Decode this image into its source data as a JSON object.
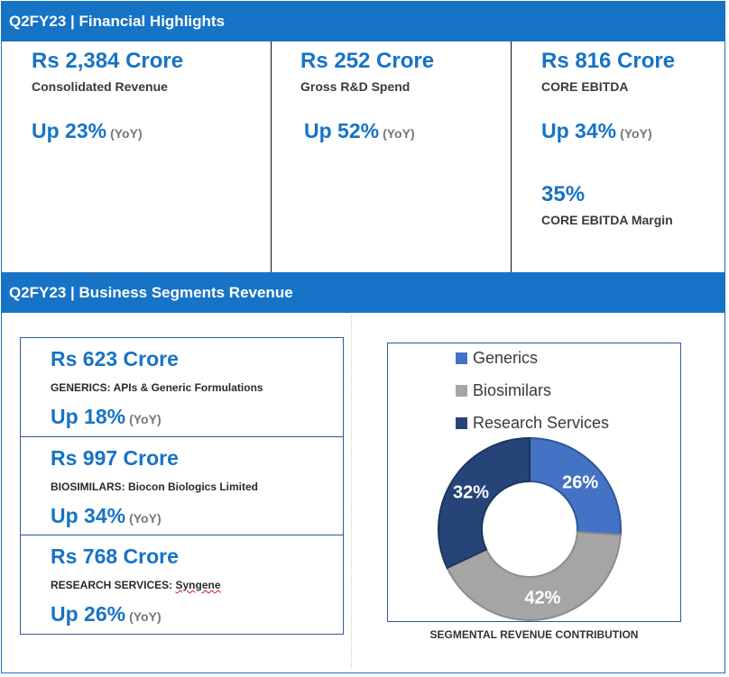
{
  "highlights": {
    "title": "Q2FY23 | Financial Highlights",
    "cards": [
      {
        "value": "Rs 2,384 Crore",
        "label": "Consolidated Revenue",
        "growth": "Up 23%",
        "yoy": "(YoY)"
      },
      {
        "value": "Rs 252 Crore",
        "label": "Gross R&D Spend",
        "growth": "Up 52%",
        "yoy": "(YoY)"
      },
      {
        "value": "Rs 816 Crore",
        "label": "CORE EBITDA",
        "growth": "Up 34%",
        "yoy": "(YoY)",
        "extra_value": "35%",
        "extra_label": "CORE EBITDA Margin"
      }
    ]
  },
  "segments": {
    "title": "Q2FY23 | Business Segments Revenue",
    "items": [
      {
        "value": "Rs 623 Crore",
        "label": "GENERICS: APIs & Generic Formulations",
        "growth": "Up 18%",
        "yoy": "(YoY)"
      },
      {
        "value": "Rs 997 Crore",
        "label": "BIOSIMILARS: Biocon Biologics Limited",
        "growth": "Up 34%",
        "yoy": "(YoY)"
      },
      {
        "value": "Rs 768 Crore",
        "label_prefix": "RESEARCH SERVICES: ",
        "label_underlined": "Syngene",
        "growth": "Up 26%",
        "yoy": "(YoY)"
      }
    ]
  },
  "chart_data": {
    "type": "pie",
    "donut": true,
    "title": "SEGMENTAL REVENUE CONTRIBUTION",
    "legend_position": "top",
    "categories": [
      "Generics",
      "Biosimilars",
      "Research Services"
    ],
    "values": [
      26,
      42,
      32
    ],
    "labels": [
      "26%",
      "42%",
      "32%"
    ],
    "colors": [
      "#4472c4",
      "#a5a5a5",
      "#264478"
    ]
  }
}
